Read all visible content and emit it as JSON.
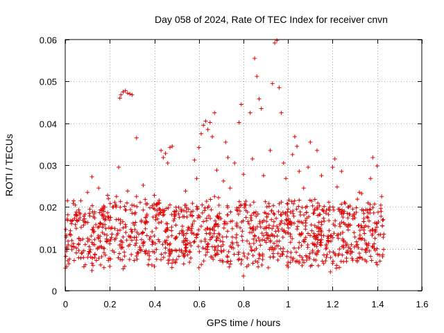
{
  "chart_data": {
    "type": "scatter",
    "title": "Day 058 of 2024, Rate Of TEC Index for receiver cnvn",
    "xlabel": "GPS time / hours",
    "ylabel": "ROTI / TECUs",
    "xlim": [
      0,
      1.6
    ],
    "ylim": [
      0,
      0.06
    ],
    "xticks": [
      0,
      0.2,
      0.4,
      0.6,
      0.8,
      1,
      1.2,
      1.4,
      1.6
    ],
    "xtick_labels": [
      "0",
      "0.2",
      "0.4",
      "0.6",
      "0.8",
      "1",
      "1.2",
      "1.4",
      "1.6"
    ],
    "yticks": [
      0,
      0.01,
      0.02,
      0.03,
      0.04,
      0.05,
      0.06
    ],
    "ytick_labels": [
      "0",
      "0.01",
      "0.02",
      "0.03",
      "0.04",
      "0.05",
      "0.06"
    ],
    "grid": true,
    "marker": "plus",
    "marker_color": "#e00000",
    "series": [
      {
        "points": [
          [
            0.01,
            0.0215
          ],
          [
            0.02,
            0.0135
          ],
          [
            0.03,
            0.0098
          ],
          [
            0.04,
            0.0072
          ],
          [
            0.05,
            0.0188
          ],
          [
            0.06,
            0.0112
          ],
          [
            0.07,
            0.0078
          ],
          [
            0.08,
            0.0168
          ],
          [
            0.09,
            0.0062
          ],
          [
            0.1,
            0.0235
          ],
          [
            0.11,
            0.0092
          ],
          [
            0.12,
            0.0048
          ],
          [
            0.13,
            0.0142
          ],
          [
            0.14,
            0.0072
          ],
          [
            0.15,
            0.0245
          ],
          [
            0.16,
            0.0105
          ],
          [
            0.17,
            0.0178
          ],
          [
            0.18,
            0.0085
          ],
          [
            0.19,
            0.0228
          ],
          [
            0.2,
            0.0112
          ],
          [
            0.21,
            0.0135
          ],
          [
            0.22,
            0.0092
          ],
          [
            0.23,
            0.0225
          ],
          [
            0.24,
            0.0295
          ],
          [
            0.245,
            0.046
          ],
          [
            0.25,
            0.0468
          ],
          [
            0.26,
            0.0475
          ],
          [
            0.27,
            0.0478
          ],
          [
            0.28,
            0.0472
          ],
          [
            0.29,
            0.047
          ],
          [
            0.3,
            0.0468
          ],
          [
            0.32,
            0.0365
          ],
          [
            0.26,
            0.0128
          ],
          [
            0.27,
            0.0158
          ],
          [
            0.28,
            0.0238
          ],
          [
            0.29,
            0.011
          ],
          [
            0.3,
            0.0185
          ],
          [
            0.31,
            0.0072
          ],
          [
            0.32,
            0.0225
          ],
          [
            0.33,
            0.0135
          ],
          [
            0.34,
            0.0098
          ],
          [
            0.35,
            0.0252
          ],
          [
            0.36,
            0.0148
          ],
          [
            0.37,
            0.0088
          ],
          [
            0.38,
            0.0198
          ],
          [
            0.39,
            0.0118
          ],
          [
            0.4,
            0.0228
          ],
          [
            0.41,
            0.0075
          ],
          [
            0.42,
            0.0162
          ],
          [
            0.43,
            0.0335
          ],
          [
            0.44,
            0.0318
          ],
          [
            0.45,
            0.0328
          ],
          [
            0.46,
            0.0305
          ],
          [
            0.47,
            0.0342
          ],
          [
            0.48,
            0.0345
          ],
          [
            0.44,
            0.0188
          ],
          [
            0.45,
            0.0102
          ],
          [
            0.46,
            0.0145
          ],
          [
            0.47,
            0.0205
          ],
          [
            0.48,
            0.0095
          ],
          [
            0.49,
            0.0172
          ],
          [
            0.5,
            0.0128
          ],
          [
            0.51,
            0.0082
          ],
          [
            0.52,
            0.0195
          ],
          [
            0.53,
            0.0115
          ],
          [
            0.54,
            0.0238
          ],
          [
            0.55,
            0.0145
          ],
          [
            0.56,
            0.0092
          ],
          [
            0.57,
            0.0178
          ],
          [
            0.58,
            0.0312
          ],
          [
            0.59,
            0.0268
          ],
          [
            0.6,
            0.0342
          ],
          [
            0.61,
            0.0375
          ],
          [
            0.62,
            0.0395
          ],
          [
            0.63,
            0.0405
          ],
          [
            0.64,
            0.0385
          ],
          [
            0.65,
            0.0402
          ],
          [
            0.66,
            0.0368
          ],
          [
            0.67,
            0.0425
          ],
          [
            0.68,
            0.0288
          ],
          [
            0.61,
            0.0118
          ],
          [
            0.62,
            0.0165
          ],
          [
            0.63,
            0.0085
          ],
          [
            0.64,
            0.0198
          ],
          [
            0.65,
            0.0138
          ],
          [
            0.66,
            0.0105
          ],
          [
            0.67,
            0.0225
          ],
          [
            0.68,
            0.0128
          ],
          [
            0.69,
            0.0172
          ],
          [
            0.7,
            0.0095
          ],
          [
            0.71,
            0.0262
          ],
          [
            0.72,
            0.0355
          ],
          [
            0.73,
            0.0318
          ],
          [
            0.74,
            0.0245
          ],
          [
            0.75,
            0.0148
          ],
          [
            0.76,
            0.0305
          ],
          [
            0.77,
            0.0115
          ],
          [
            0.78,
            0.0402
          ],
          [
            0.79,
            0.0445
          ],
          [
            0.8,
            0.0278
          ],
          [
            0.81,
            0.0205
          ],
          [
            0.82,
            0.0165
          ],
          [
            0.83,
            0.0425
          ],
          [
            0.84,
            0.0315
          ],
          [
            0.85,
            0.0555
          ],
          [
            0.86,
            0.0512
          ],
          [
            0.87,
            0.0458
          ],
          [
            0.88,
            0.0435
          ],
          [
            0.89,
            0.0275
          ],
          [
            0.9,
            0.0185
          ],
          [
            0.91,
            0.0125
          ],
          [
            0.92,
            0.0335
          ],
          [
            0.93,
            0.0495
          ],
          [
            0.94,
            0.0592
          ],
          [
            0.95,
            0.0598
          ],
          [
            0.96,
            0.0485
          ],
          [
            0.97,
            0.0425
          ],
          [
            0.98,
            0.0305
          ],
          [
            0.99,
            0.0268
          ],
          [
            1.0,
            0.0195
          ],
          [
            1.01,
            0.0135
          ],
          [
            1.02,
            0.0325
          ],
          [
            1.03,
            0.0368
          ],
          [
            1.04,
            0.0345
          ],
          [
            1.05,
            0.0285
          ],
          [
            1.06,
            0.0108
          ],
          [
            1.07,
            0.0245
          ],
          [
            1.08,
            0.0162
          ],
          [
            1.09,
            0.0295
          ],
          [
            1.1,
            0.0355
          ],
          [
            1.11,
            0.0092
          ],
          [
            1.12,
            0.0218
          ],
          [
            1.13,
            0.0335
          ],
          [
            1.14,
            0.0148
          ],
          [
            1.15,
            0.0275
          ],
          [
            1.16,
            0.0065
          ],
          [
            1.17,
            0.0185
          ],
          [
            1.18,
            0.0125
          ],
          [
            1.19,
            0.0045
          ],
          [
            1.2,
            0.0295
          ],
          [
            1.21,
            0.0315
          ],
          [
            1.22,
            0.0248
          ],
          [
            1.23,
            0.0195
          ],
          [
            1.24,
            0.0285
          ],
          [
            1.25,
            0.0162
          ],
          [
            1.26,
            0.0108
          ],
          [
            1.27,
            0.0145
          ],
          [
            1.28,
            0.0088
          ],
          [
            1.29,
            0.0195
          ],
          [
            1.3,
            0.0128
          ],
          [
            1.31,
            0.0072
          ],
          [
            1.32,
            0.0235
          ],
          [
            1.33,
            0.0232
          ],
          [
            1.34,
            0.0165
          ],
          [
            1.35,
            0.0092
          ],
          [
            1.36,
            0.0108
          ],
          [
            1.37,
            0.0268
          ],
          [
            1.38,
            0.0318
          ],
          [
            1.39,
            0.0125
          ],
          [
            1.4,
            0.0298
          ],
          [
            1.41,
            0.0085
          ],
          [
            1.42,
            0.0225
          ],
          [
            1.43,
            0.0135
          ],
          [
            0.05,
            0.0102
          ],
          [
            0.15,
            0.0125
          ],
          [
            0.25,
            0.0118
          ],
          [
            0.35,
            0.0108
          ],
          [
            0.45,
            0.0115
          ],
          [
            0.55,
            0.0112
          ],
          [
            0.65,
            0.0148
          ],
          [
            0.75,
            0.0128
          ],
          [
            0.85,
            0.0132
          ],
          [
            0.95,
            0.0118
          ],
          [
            1.05,
            0.0115
          ],
          [
            1.15,
            0.0132
          ],
          [
            1.25,
            0.0185
          ],
          [
            1.35,
            0.0098
          ],
          [
            0.12,
            0.0272
          ],
          [
            0.2,
            0.0058
          ],
          [
            0.4,
            0.0058
          ],
          [
            0.6,
            0.0055
          ],
          [
            0.8,
            0.0035
          ],
          [
            1.0,
            0.0068
          ],
          [
            1.2,
            0.0065
          ],
          [
            1.4,
            0.0062
          ]
        ]
      }
    ]
  }
}
